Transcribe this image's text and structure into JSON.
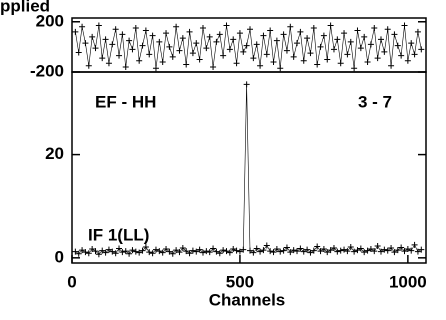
{
  "chart_data": [
    {
      "type": "line",
      "label": "pplied",
      "xlim": [
        0,
        1054
      ],
      "ylim": [
        -200,
        230
      ],
      "yticks": [
        -200,
        200
      ],
      "x": [
        10,
        20,
        30,
        40,
        50,
        60,
        70,
        80,
        90,
        100,
        110,
        120,
        130,
        140,
        150,
        160,
        170,
        180,
        190,
        200,
        210,
        220,
        230,
        240,
        250,
        260,
        270,
        280,
        290,
        300,
        310,
        320,
        330,
        340,
        350,
        360,
        370,
        380,
        390,
        400,
        410,
        420,
        430,
        440,
        450,
        460,
        470,
        480,
        490,
        500,
        510,
        520,
        530,
        540,
        550,
        560,
        570,
        580,
        590,
        600,
        610,
        620,
        630,
        640,
        650,
        660,
        670,
        680,
        690,
        700,
        710,
        720,
        730,
        740,
        750,
        760,
        770,
        780,
        790,
        800,
        810,
        820,
        830,
        840,
        850,
        860,
        870,
        880,
        890,
        900,
        910,
        920,
        930,
        940,
        950,
        960,
        970,
        980,
        990,
        1000,
        1010,
        1020,
        1030,
        1040
      ],
      "values": [
        120,
        -45,
        160,
        30,
        -150,
        80,
        -10,
        170,
        -90,
        60,
        -130,
        20,
        140,
        -70,
        100,
        -160,
        50,
        -20,
        150,
        -110,
        10,
        130,
        -60,
        90,
        -170,
        40,
        -120,
        110,
        0,
        -80,
        160,
        -30,
        70,
        -140,
        120,
        -50,
        30,
        -100,
        150,
        -10,
        80,
        -160,
        40,
        100,
        -70,
        170,
        -20,
        60,
        -130,
        110,
        -40,
        10,
        140,
        -90,
        20,
        -150,
        90,
        -60,
        130,
        -120,
        50,
        -170,
        100,
        -30,
        160,
        -80,
        30,
        120,
        -110,
        70,
        -50,
        150,
        -140,
        0,
        90,
        -100,
        170,
        -20,
        60,
        -130,
        110,
        -60,
        40,
        -170,
        130,
        -10,
        80,
        -120,
        20,
        150,
        -90,
        60,
        -40,
        140,
        -150,
        100,
        10,
        -70,
        170,
        -110,
        30,
        -60,
        120,
        -20
      ]
    },
    {
      "type": "line",
      "title": "EF - HH",
      "annotations": [
        "3 - 7",
        "IF 1(LL)"
      ],
      "xlabel": "Channels",
      "xlim": [
        0,
        1054
      ],
      "ylim": [
        -1,
        36
      ],
      "xticks": [
        0,
        500,
        1000
      ],
      "yticks": [
        0,
        20
      ],
      "x": [
        10,
        20,
        30,
        40,
        50,
        60,
        70,
        80,
        90,
        100,
        110,
        120,
        130,
        140,
        150,
        160,
        170,
        180,
        190,
        200,
        210,
        220,
        230,
        240,
        250,
        260,
        270,
        280,
        290,
        300,
        310,
        320,
        330,
        340,
        350,
        360,
        370,
        380,
        390,
        400,
        410,
        420,
        430,
        440,
        450,
        460,
        470,
        480,
        490,
        500,
        510,
        520,
        530,
        540,
        550,
        560,
        570,
        580,
        590,
        600,
        610,
        620,
        630,
        640,
        650,
        660,
        670,
        680,
        690,
        700,
        710,
        720,
        730,
        740,
        750,
        760,
        770,
        780,
        790,
        800,
        810,
        820,
        830,
        840,
        850,
        860,
        870,
        880,
        890,
        900,
        910,
        920,
        930,
        940,
        950,
        960,
        970,
        980,
        990,
        1000,
        1010,
        1020,
        1030,
        1040
      ],
      "values": [
        1.2,
        0.8,
        1.5,
        1.1,
        0.9,
        1.7,
        1.3,
        0.7,
        1.4,
        1.0,
        1.6,
        1.2,
        0.9,
        1.8,
        1.1,
        1.3,
        0.8,
        1.5,
        1.2,
        1.0,
        1.4,
        2.1,
        1.1,
        0.9,
        1.6,
        1.3,
        1.0,
        1.7,
        1.2,
        0.8,
        1.5,
        1.1,
        1.9,
        1.3,
        0.9,
        1.4,
        1.2,
        1.6,
        1.0,
        1.3,
        1.1,
        1.8,
        1.2,
        0.9,
        1.5,
        1.3,
        1.0,
        1.7,
        1.4,
        1.2,
        1.6,
        33.6,
        1.4,
        1.0,
        1.8,
        1.2,
        1.5,
        2.4,
        1.3,
        1.1,
        1.7,
        1.2,
        1.4,
        2.0,
        1.1,
        1.5,
        1.3,
        1.8,
        1.2,
        1.6,
        1.0,
        1.4,
        2.2,
        1.3,
        1.7,
        1.1,
        1.5,
        1.9,
        1.2,
        1.4,
        1.6,
        1.3,
        2.1,
        1.2,
        1.5,
        1.8,
        1.1,
        1.4,
        1.7,
        1.3,
        2.3,
        1.2,
        1.6,
        1.4,
        1.9,
        1.1,
        1.5,
        2.0,
        1.3,
        1.7,
        1.4,
        2.5,
        1.2,
        1.6
      ]
    }
  ]
}
